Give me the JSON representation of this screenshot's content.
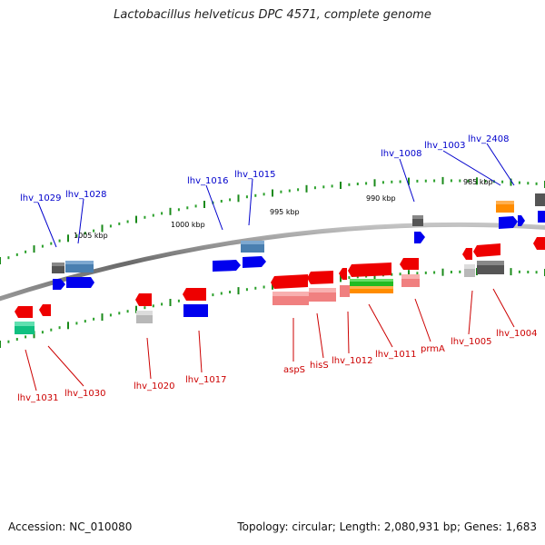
{
  "title": "Lactobacillus helveticus DPC 4571, complete genome",
  "footer": {
    "accession": "Accession: NC_010080",
    "stats": "Topology: circular; Length: 2,080,931 bp; Genes: 1,683"
  },
  "colors": {
    "backbone": "#7a7a7a",
    "tick_major": "#1a8a1a",
    "tick_minor": "#2aa02a",
    "label_forward": "#0000cc",
    "label_reverse": "#cc0000",
    "leader_forward": "#0000cc",
    "leader_reverse": "#cc0000"
  },
  "scale_labels": [
    "1005 kbp",
    "1000 kbp",
    "995 kbp",
    "990 kbp",
    "985 kbp"
  ],
  "forward_labels": [
    "lhv_1029",
    "lhv_1028",
    "lhv_1016",
    "lhv_1015",
    "lhv_1008",
    "lhv_1003",
    "lhv_2408"
  ],
  "reverse_labels": [
    "lhv_1031",
    "lhv_1030",
    "lhv_1020",
    "lhv_1017",
    "aspS",
    "hisS",
    "lhv_1012",
    "lhv_1011",
    "prmA",
    "lhv_1005",
    "lhv_1004"
  ]
}
